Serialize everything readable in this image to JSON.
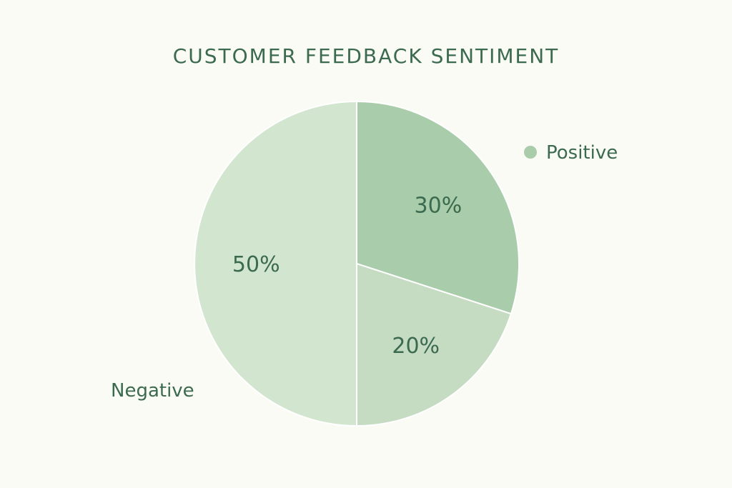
{
  "chart_data": {
    "type": "pie",
    "title": "CUSTOMER FEEDBACK SENTIMENT",
    "slices": [
      {
        "label": "Positive",
        "value": 30,
        "display": "30%",
        "color": "#a9cdab"
      },
      {
        "label": "",
        "value": 20,
        "display": "20%",
        "color": "#c5dcc3"
      },
      {
        "label": "Negative",
        "value": 50,
        "display": "50%",
        "color": "#d2e6cf"
      }
    ],
    "text_color": "#3b6a4f",
    "divider_color": "#ffffff"
  }
}
